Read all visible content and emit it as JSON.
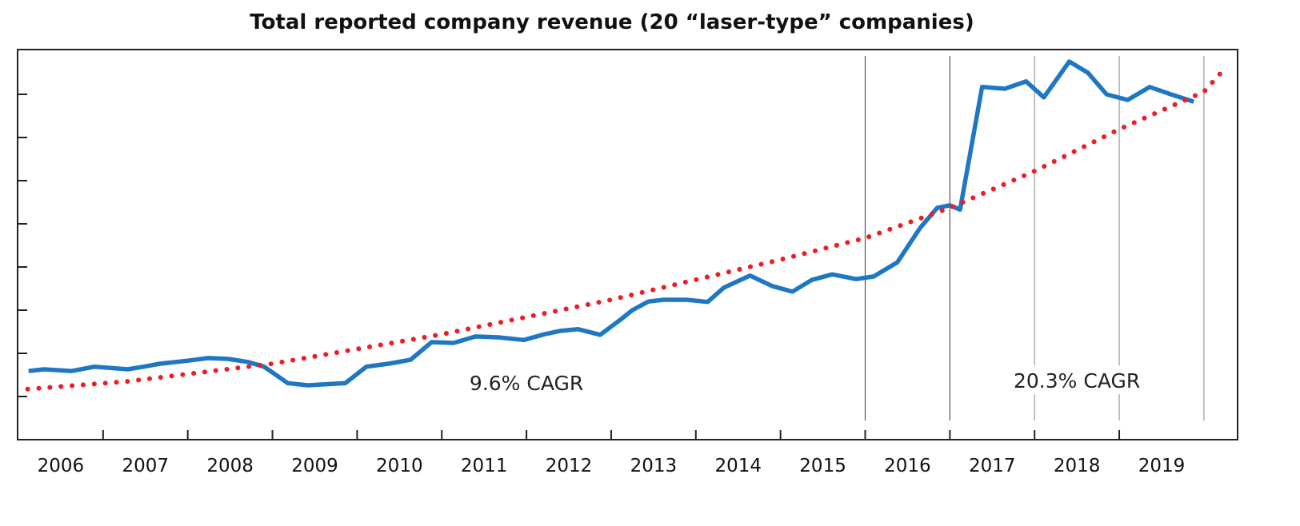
{
  "chart_data": {
    "type": "line",
    "title": "Total reported company revenue (20 “laser-type” companies)",
    "xlabel": "",
    "ylabel": "",
    "x_tick_labels": [
      "2006",
      "2007",
      "2008",
      "2009",
      "2010",
      "2011",
      "2012",
      "2013",
      "2014",
      "2015",
      "2016",
      "2017",
      "2018",
      "2019"
    ],
    "xlim": [
      2006.0,
      2020.4
    ],
    "ylim": [
      0,
      9.04
    ],
    "y_ticks": [
      1,
      2,
      3,
      4,
      5,
      6,
      7,
      8
    ],
    "y_tick_labels_shown": false,
    "grid": false,
    "vertical_markers": [
      {
        "x": 2016,
        "color": "#555555"
      },
      {
        "x": 2017,
        "color": "#555555"
      },
      {
        "x": 2018,
        "color": "#999999"
      },
      {
        "x": 2019,
        "color": "#999999"
      },
      {
        "x": 2020,
        "color": "#999999"
      }
    ],
    "series": [
      {
        "style": "solid",
        "color": "#1f77c4",
        "x": [
          2006.12,
          2006.3,
          2006.63,
          2006.9,
          2007.29,
          2007.48,
          2007.67,
          2008.0,
          2008.24,
          2008.48,
          2008.71,
          2008.9,
          2008.99,
          2009.18,
          2009.42,
          2009.86,
          2010.11,
          2010.37,
          2010.63,
          2010.88,
          2011.14,
          2011.4,
          2011.67,
          2011.97,
          2012.21,
          2012.4,
          2012.61,
          2012.87,
          2013.13,
          2013.25,
          2013.44,
          2013.62,
          2013.89,
          2014.14,
          2014.33,
          2014.64,
          2014.9,
          2015.14,
          2015.37,
          2015.61,
          2015.89,
          2016.1,
          2016.38,
          2016.65,
          2016.85,
          2017.0,
          2017.12,
          2017.38,
          2017.65,
          2017.9,
          2018.11,
          2018.41,
          2018.63,
          2018.85,
          2019.1,
          2019.36,
          2019.61,
          2019.88
        ],
        "y": [
          1.59,
          1.63,
          1.59,
          1.69,
          1.63,
          1.69,
          1.76,
          1.83,
          1.89,
          1.87,
          1.8,
          1.69,
          1.57,
          1.31,
          1.26,
          1.31,
          1.69,
          1.76,
          1.85,
          2.26,
          2.24,
          2.39,
          2.37,
          2.31,
          2.44,
          2.52,
          2.56,
          2.43,
          2.81,
          3.0,
          3.2,
          3.24,
          3.24,
          3.19,
          3.52,
          3.8,
          3.56,
          3.43,
          3.7,
          3.83,
          3.72,
          3.78,
          4.11,
          4.91,
          5.37,
          5.43,
          5.33,
          8.17,
          8.13,
          8.3,
          7.93,
          8.76,
          8.5,
          8.0,
          7.87,
          8.17,
          8.0,
          7.83
        ]
      },
      {
        "style": "dotted",
        "color": "#ee1c25",
        "x": [
          2006.11,
          2007.29,
          2009.0,
          2011.0,
          2013.0,
          2015.0,
          2016.0,
          2017.0,
          2018.0,
          2019.0,
          2020.0,
          2020.27
        ],
        "y": [
          1.17,
          1.35,
          1.76,
          2.44,
          3.24,
          4.17,
          4.67,
          5.37,
          6.22,
          7.19,
          8.06,
          8.65
        ]
      }
    ],
    "annotations": [
      {
        "text": "9.6% CAGR",
        "x": 2012.0,
        "y": 1.15
      },
      {
        "text": "20.3% CAGR",
        "x": 2018.5,
        "y": 1.2
      }
    ]
  }
}
